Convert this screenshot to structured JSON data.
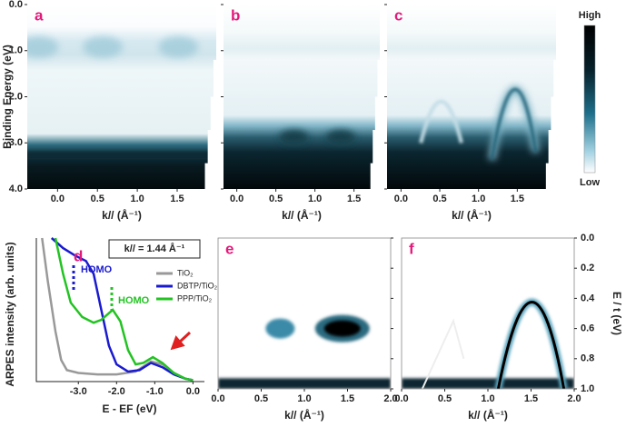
{
  "chart_data": [
    {
      "type": "image-map",
      "label": "a",
      "xlabel": "k// (Å⁻¹)",
      "ylabel": "Binding Energy (eV)",
      "xlim": [
        -0.38,
        1.99
      ],
      "xticks": [
        {
          "value": 0,
          "label": "0.0"
        },
        0.5,
        {
          "value": 1,
          "label": "1.0"
        },
        1.5
      ],
      "ylim": [
        0,
        4
      ],
      "yticks": [
        {
          "value": 0,
          "label": "0.0"
        },
        {
          "value": 1,
          "label": "1.0"
        },
        {
          "value": 2,
          "label": "2.0"
        },
        {
          "value": 3,
          "label": "3.0"
        },
        {
          "value": 4,
          "label": "4.0"
        }
      ]
    },
    {
      "type": "image-map",
      "label": "b",
      "xlabel": "k// (Å⁻¹)",
      "xlim": [
        -0.17,
        1.83
      ],
      "xticks": [
        {
          "value": 0,
          "label": "0.0"
        },
        0.5,
        {
          "value": 1,
          "label": "1.0"
        },
        1.5
      ],
      "ylim": [
        0,
        4
      ]
    },
    {
      "type": "image-map",
      "label": "c",
      "xlabel": "k// (Å⁻¹)",
      "xlim": [
        -0.18,
        2.0
      ],
      "xticks": [
        {
          "value": 0,
          "label": "0.0"
        },
        0.5,
        {
          "value": 1,
          "label": "1.0"
        },
        1.5
      ],
      "ylim": [
        0,
        4
      ],
      "colorbar_labels": [
        "High",
        "Low"
      ]
    },
    {
      "type": "line",
      "label": "d",
      "title": "k// = 1.44 Å⁻¹",
      "xlabel": "E - EF (eV)",
      "ylabel": "ARPES intensity (arb. units)",
      "xlim": [
        -4.1,
        0.3
      ],
      "xticks": [
        {
          "value": -3,
          "label": "-3.0"
        },
        {
          "value": -2,
          "label": "-2.0"
        },
        {
          "value": -1,
          "label": "-1.0"
        },
        {
          "value": 0,
          "label": "0.0"
        }
      ],
      "ylim": [
        0,
        1
      ],
      "annotations": [
        "HOMO",
        "HOMO"
      ],
      "series": [
        {
          "name": "TiO₂",
          "color": "#999999",
          "x": [
            -3.95,
            -3.8,
            -3.6,
            -3.45,
            -3.3,
            -3.0,
            -2.5,
            -2.0,
            -1.5,
            -1.1,
            -0.8,
            -0.5,
            -0.2,
            0.0
          ],
          "values": [
            1.0,
            0.7,
            0.35,
            0.15,
            0.08,
            0.06,
            0.05,
            0.05,
            0.07,
            0.14,
            0.12,
            0.06,
            0.02,
            0.01
          ]
        },
        {
          "name": "DBTP/TiO₂",
          "color": "#1a1ad0",
          "x": [
            -3.7,
            -3.4,
            -3.1,
            -2.8,
            -2.6,
            -2.4,
            -2.2,
            -2.0,
            -1.7,
            -1.4,
            -1.1,
            -0.8,
            -0.5,
            -0.2,
            0.0
          ],
          "values": [
            1.0,
            0.93,
            0.88,
            0.84,
            0.75,
            0.5,
            0.25,
            0.12,
            0.07,
            0.08,
            0.13,
            0.1,
            0.05,
            0.02,
            0.01
          ]
        },
        {
          "name": "PPP/TiO₂",
          "color": "#22c322",
          "x": [
            -3.6,
            -3.4,
            -3.2,
            -2.9,
            -2.6,
            -2.4,
            -2.1,
            -1.9,
            -1.7,
            -1.5,
            -1.3,
            -1.05,
            -0.8,
            -0.5,
            -0.2,
            0.0
          ],
          "values": [
            1.0,
            0.75,
            0.55,
            0.45,
            0.41,
            0.43,
            0.5,
            0.42,
            0.22,
            0.12,
            0.13,
            0.17,
            0.13,
            0.06,
            0.02,
            0.01
          ]
        }
      ]
    },
    {
      "type": "image-map",
      "label": "e",
      "xlabel": "k// (Å⁻¹)",
      "xlim": [
        0,
        2
      ],
      "xticks": [
        {
          "value": 0,
          "label": "0.0"
        },
        0.5,
        {
          "value": 1,
          "label": "1.0"
        },
        1.5,
        {
          "value": 2,
          "label": "2.0"
        }
      ],
      "ylim": [
        0,
        1
      ]
    },
    {
      "type": "image-map",
      "label": "f",
      "xlabel": "k// (Å⁻¹)",
      "ylabel": "E / t  (eV)",
      "xlim": [
        0,
        2
      ],
      "xticks": [
        {
          "value": 0,
          "label": "0.0"
        },
        0.5,
        {
          "value": 1,
          "label": "1.0"
        },
        1.5,
        {
          "value": 2,
          "label": "2.0"
        }
      ],
      "ylim": [
        0,
        1
      ],
      "yticks": [
        {
          "value": 0,
          "label": "0.0"
        },
        0.2,
        0.4,
        0.6,
        0.8,
        {
          "value": 1,
          "label": "1.0"
        }
      ]
    }
  ]
}
